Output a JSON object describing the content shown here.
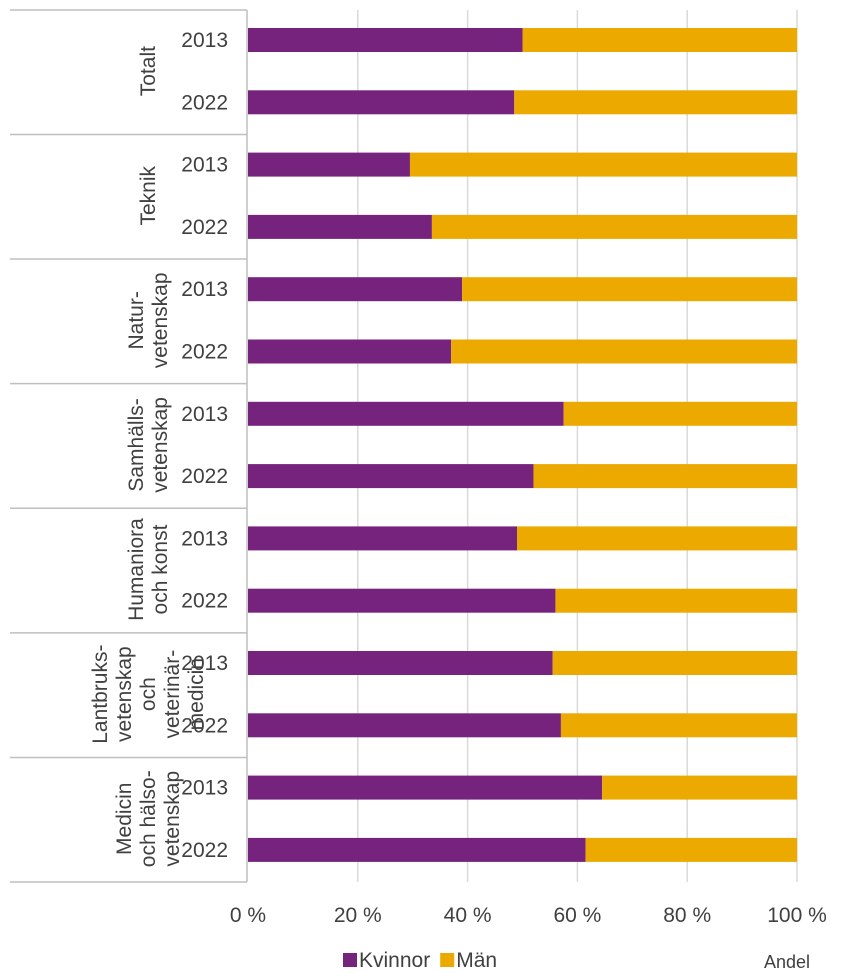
{
  "chart_data": {
    "type": "bar",
    "orientation": "horizontal",
    "stacked": true,
    "normalized": true,
    "groups": [
      {
        "label_lines": [
          "Totalt"
        ],
        "years": [
          "2013",
          "2022"
        ]
      },
      {
        "label_lines": [
          "Teknik"
        ],
        "years": [
          "2013",
          "2022"
        ]
      },
      {
        "label_lines": [
          "Natur-",
          "vetenskap"
        ],
        "years": [
          "2013",
          "2022"
        ]
      },
      {
        "label_lines": [
          "Samhälls-",
          "vetenskap"
        ],
        "years": [
          "2013",
          "2022"
        ]
      },
      {
        "label_lines": [
          "Humaniora",
          "och konst"
        ],
        "years": [
          "2013",
          "2022"
        ]
      },
      {
        "label_lines": [
          "Lantbruks-",
          "vetenskap",
          "och",
          "veterinär-",
          "medicin"
        ],
        "years": [
          "2013",
          "2022"
        ]
      },
      {
        "label_lines": [
          "Medicin",
          "och hälso-",
          "vetenskap"
        ],
        "years": [
          "2013",
          "2022"
        ]
      }
    ],
    "series": [
      {
        "name": "Kvinnor",
        "color": "#76237E",
        "values": [
          50,
          48.5,
          29.5,
          33.5,
          39,
          37,
          57.5,
          52,
          49,
          56,
          55.5,
          57,
          64.5,
          61.5
        ]
      },
      {
        "name": "Män",
        "color": "#ECA900",
        "values": [
          50,
          51.5,
          70.5,
          66.5,
          61,
          63,
          42.5,
          48,
          51,
          44,
          44.5,
          43,
          35.5,
          38.5
        ]
      }
    ],
    "x_ticks": [
      "0 %",
      "20 %",
      "40 %",
      "60 %",
      "80 %",
      "100 %"
    ],
    "xlim": [
      0,
      100
    ],
    "xlabel": "Andel",
    "grid": true,
    "legend_position": "bottom"
  }
}
